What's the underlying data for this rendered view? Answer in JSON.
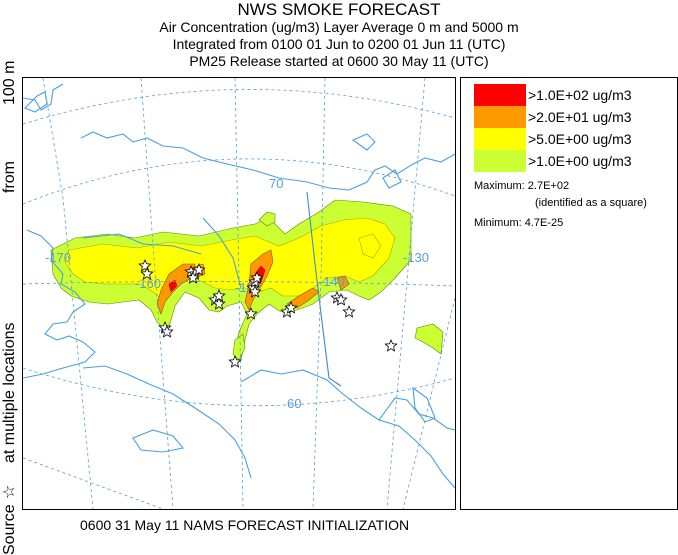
{
  "header": {
    "title": "NWS SMOKE FORECAST",
    "line2": "Air Concentration (ug/m3) Layer Average    0 m and  5000 m",
    "line3": "Integrated from 0100 01 Jun to 0200 01 Jun 11 (UTC)",
    "line4": "PM25 Release started at 0600 30 May 11 (UTC)"
  },
  "side_label": {
    "source": "Source",
    "source_symbol": "☆",
    "at_multiple": "at multiple locations",
    "from": "from",
    "height": "100 m"
  },
  "legend": {
    "items": [
      {
        "label": ">1.0E+02 ug/m3",
        "color": "#ff0000"
      },
      {
        "label": ">2.0E+01 ug/m3",
        "color": "#ff9900"
      },
      {
        "label": ">5.0E+00 ug/m3",
        "color": "#ffff00"
      },
      {
        "label": ">1.0E+00 ug/m3",
        "color": "#ccff33"
      }
    ],
    "maximum_label": "Maximum:",
    "maximum_value": "2.7E+02",
    "maximum_note": "(identified as a square)",
    "minimum_label": "Minimum:",
    "minimum_value": "4.7E-25"
  },
  "map": {
    "grid_labels": {
      "lat70": "70",
      "lat60": "60",
      "lon170": "-170",
      "lon160": "-160",
      "lon150": "-150",
      "lon140": "-140",
      "lon130": "-130"
    },
    "colors": {
      "coast": "#4aa0e0",
      "grid": "#56a0d8",
      "border": "#3c8cd0"
    }
  },
  "footer": {
    "text": "0600 31 May 11 NAMS FORECAST INITIALIZATION"
  }
}
